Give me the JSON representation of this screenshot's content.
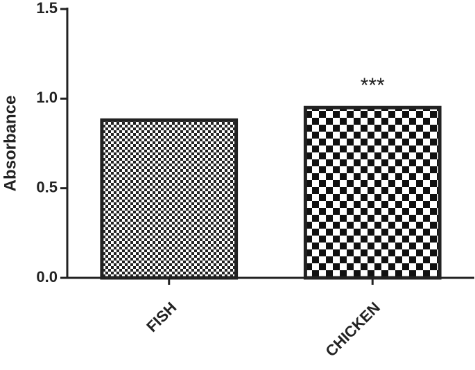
{
  "chart_data": {
    "type": "bar",
    "y_label": "Absorbance",
    "categories": [
      "FISH",
      "CHICKEN"
    ],
    "values": [
      0.88,
      0.95
    ],
    "color": "#222222",
    "annotations": [
      {
        "category": "CHICKEN",
        "text": "***"
      }
    ],
    "ylim": [
      0,
      1.5
    ],
    "yticks": [
      {
        "value": 0,
        "label": "0.0"
      },
      {
        "value": 0.5,
        "label": "0.5"
      },
      {
        "value": 1,
        "label": "1.0"
      },
      {
        "value": 1.5,
        "label": "1.5"
      }
    ],
    "grid": false
  }
}
